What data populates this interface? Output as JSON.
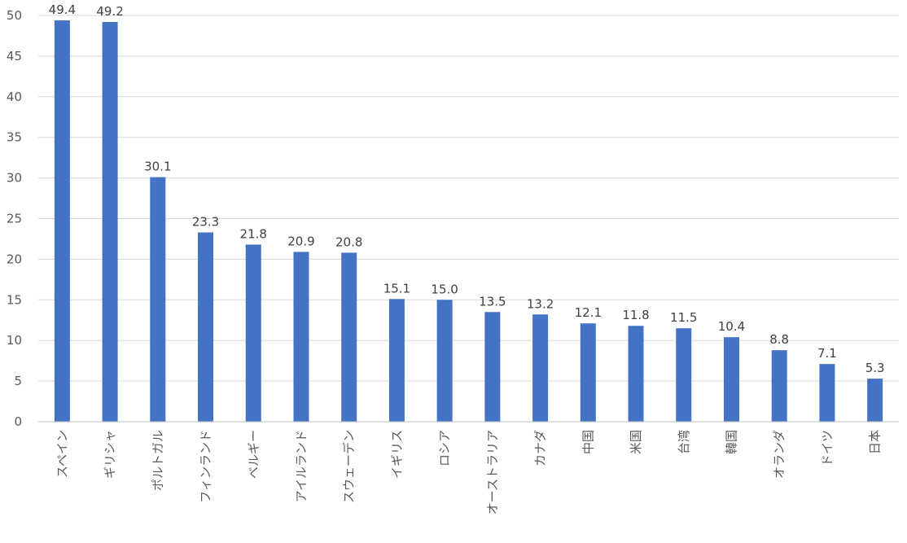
{
  "chart_data": {
    "type": "bar",
    "categories": [
      "スペイン",
      "ギリシャ",
      "ポルトガル",
      "フィンランド",
      "ベルギー",
      "アイルランド",
      "スウェーデン",
      "イギリス",
      "ロシア",
      "オーストラリア",
      "カナダ",
      "中国",
      "米国",
      "台湾",
      "韓国",
      "オランダ",
      "ドイツ",
      "日本"
    ],
    "values": [
      49.4,
      49.2,
      30.1,
      23.3,
      21.8,
      20.9,
      20.8,
      15.1,
      15.0,
      13.5,
      13.2,
      12.1,
      11.8,
      11.5,
      10.4,
      8.8,
      7.1,
      5.3
    ],
    "value_labels": [
      "49.4",
      "49.2",
      "30.1",
      "23.3",
      "21.8",
      "20.9",
      "20.8",
      "15.1",
      "15.0",
      "13.5",
      "13.2",
      "12.1",
      "11.8",
      "11.5",
      "10.4",
      "8.8",
      "7.1",
      "5.3"
    ],
    "ylim": [
      0,
      50
    ],
    "yticks": [
      "0",
      "5",
      "10",
      "15",
      "20",
      "25",
      "30",
      "35",
      "40",
      "45",
      "50"
    ],
    "title": "",
    "xlabel": "",
    "ylabel": "",
    "grid": true,
    "legend": "none",
    "bar_color": "#4472c4",
    "grid_color": "#d9d9d9",
    "label_color": "#595959"
  }
}
